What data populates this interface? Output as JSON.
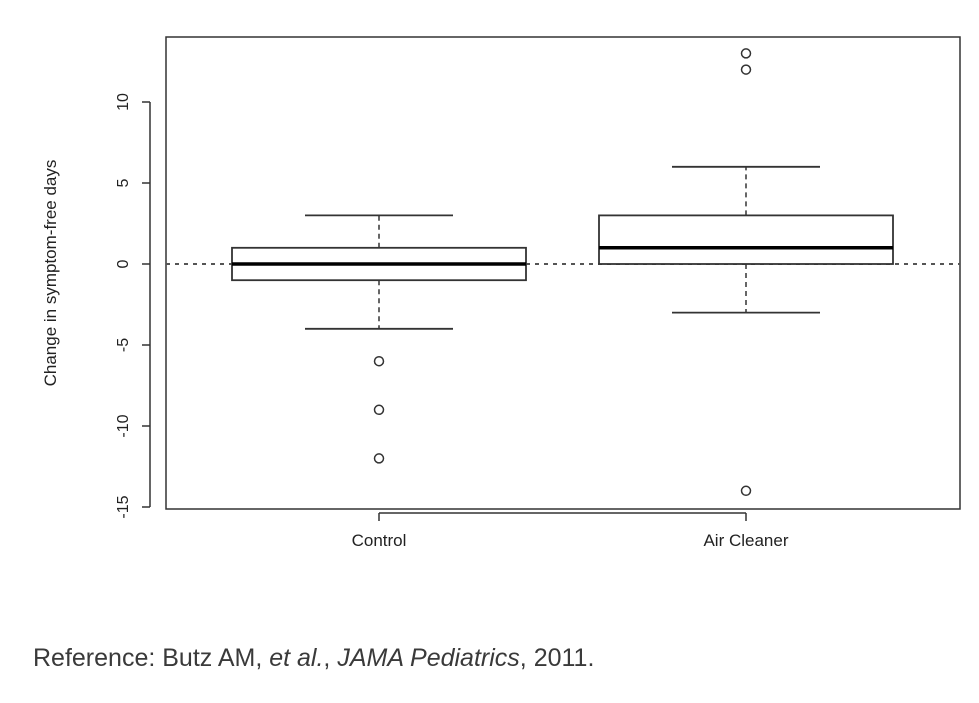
{
  "chart_data": {
    "type": "boxplot",
    "ylabel": "Change in symptom-free days",
    "ylim": [
      -15,
      14
    ],
    "yticks": [
      -15,
      -10,
      -5,
      0,
      5,
      10
    ],
    "reference_line": 0,
    "categories": [
      "Control",
      "Air Cleaner"
    ],
    "boxes": [
      {
        "label": "Control",
        "whisker_low": -4,
        "q1": -1,
        "median": 0,
        "q3": 1,
        "whisker_high": 3,
        "outliers": [
          -6,
          -9,
          -12
        ]
      },
      {
        "label": "Air Cleaner",
        "whisker_low": -3,
        "q1": 0,
        "median": 1,
        "q3": 3,
        "whisker_high": 6,
        "outliers": [
          12,
          13,
          -14
        ]
      }
    ],
    "grid": false
  },
  "reference": {
    "prefix": "Reference: Butz AM, ",
    "etal": "et al.",
    "sep": ", ",
    "journal": "JAMA Pediatrics",
    "suffix": ", 2011."
  }
}
